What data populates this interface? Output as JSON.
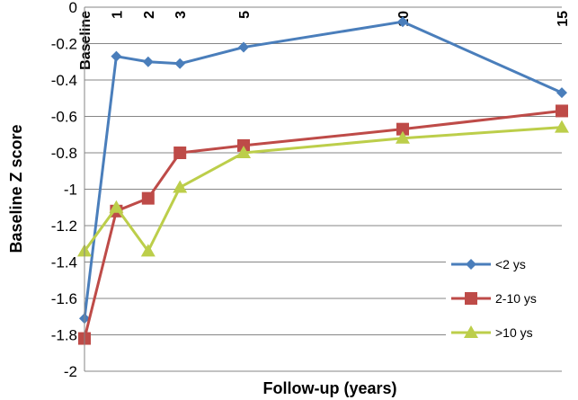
{
  "chart_data": {
    "type": "line",
    "xlabel": "Follow-up (years)",
    "ylabel": "Baseline Z score",
    "xlim": [
      0,
      15
    ],
    "ylim": [
      -2,
      0
    ],
    "yticks": [
      0,
      -0.2,
      -0.4,
      -0.6,
      -0.8,
      -1,
      -1.2,
      -1.4,
      -1.6,
      -1.8,
      -2
    ],
    "ytick_labels": [
      "0",
      "-0.2",
      "-0.4",
      "-0.6",
      "-0.8",
      "-1",
      "-1.2",
      "-1.4",
      "-1.6",
      "-1.8",
      "-2"
    ],
    "xticks": [
      {
        "value": 0,
        "label": "Baseline"
      },
      {
        "value": 1,
        "label": "1"
      },
      {
        "value": 2,
        "label": "2"
      },
      {
        "value": 3,
        "label": "3"
      },
      {
        "value": 5,
        "label": "5"
      },
      {
        "value": 10,
        "label": "10"
      },
      {
        "value": 15,
        "label": "15"
      }
    ],
    "grid": "horizontal",
    "legend": "bottom-right",
    "series": [
      {
        "name": "<2 ys",
        "color": "#4a7ebb",
        "marker": "diamond",
        "x": [
          0,
          1,
          2,
          3,
          5,
          10,
          15
        ],
        "y": [
          -1.71,
          -0.27,
          -0.3,
          -0.31,
          -0.22,
          -0.08,
          -0.47
        ]
      },
      {
        "name": "2-10 ys",
        "color": "#be4b48",
        "marker": "square",
        "x": [
          0,
          1,
          2,
          3,
          5,
          10,
          15
        ],
        "y": [
          -1.82,
          -1.12,
          -1.05,
          -0.8,
          -0.76,
          -0.67,
          -0.57
        ]
      },
      {
        "name": ">10 ys",
        "color": "#bcce4a",
        "marker": "triangle",
        "x": [
          0,
          1,
          2,
          3,
          5,
          10,
          15
        ],
        "y": [
          -1.34,
          -1.1,
          -1.34,
          -0.99,
          -0.8,
          -0.72,
          -0.66
        ]
      }
    ]
  }
}
